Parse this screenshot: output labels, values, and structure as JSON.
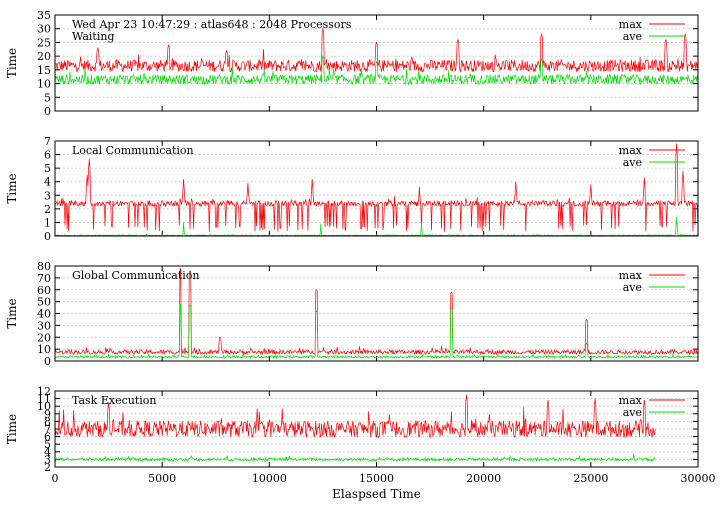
{
  "colors": {
    "max": "#ff0000",
    "ave": "#00dd00"
  },
  "chart_data": [
    {
      "type": "line",
      "title": "Wed Apr 23 10:47:29 : atlas648 : 2048 Processors",
      "subtitle": "Waiting",
      "ylabel": "Time",
      "xlabel": "",
      "xlim": [
        0,
        30000
      ],
      "ylim": [
        0,
        35
      ],
      "yticks": [
        "0",
        "5",
        "10",
        "15",
        "20",
        "25",
        "30",
        "35"
      ],
      "grid": true,
      "legend": "top-right",
      "x_end": 30000,
      "series": [
        {
          "name": "max",
          "base": 16.5,
          "noise": 2.2,
          "spikes": [
            [
              2000,
              23
            ],
            [
              5300,
              24
            ],
            [
              8000,
              22
            ],
            [
              12500,
              30
            ],
            [
              15000,
              25
            ],
            [
              18800,
              26
            ],
            [
              22700,
              28
            ],
            [
              28500,
              26
            ],
            [
              29400,
              28
            ]
          ]
        },
        {
          "name": "ave",
          "base": 11.5,
          "noise": 1.8,
          "spikes": [
            [
              12500,
              20
            ],
            [
              15000,
              18
            ],
            [
              22700,
              19
            ]
          ]
        }
      ]
    },
    {
      "type": "line",
      "title": "Local Communication",
      "ylabel": "Time",
      "xlabel": "",
      "xlim": [
        0,
        30000
      ],
      "ylim": [
        0,
        7
      ],
      "yticks": [
        "0",
        "1",
        "2",
        "3",
        "4",
        "5",
        "6",
        "7"
      ],
      "grid": true,
      "legend": "top-right",
      "x_end": 30000,
      "series": [
        {
          "name": "max",
          "base": 2.4,
          "noise": 0.2,
          "spikes": [
            [
              1600,
              5.7
            ],
            [
              1500,
              4.5
            ],
            [
              6000,
              4.2
            ],
            [
              9000,
              3.9
            ],
            [
              12000,
              4.2
            ],
            [
              17000,
              3.6
            ],
            [
              21500,
              4.0
            ],
            [
              25000,
              3.8
            ],
            [
              27500,
              4.3
            ],
            [
              29000,
              6.8
            ],
            [
              29300,
              4.8
            ]
          ]
        },
        {
          "name": "ave",
          "base": 0.05,
          "noise": 0.03,
          "spikes": [
            [
              6000,
              1.0
            ],
            [
              12400,
              0.9
            ],
            [
              17100,
              1.0
            ],
            [
              29000,
              1.4
            ]
          ]
        }
      ]
    },
    {
      "type": "line",
      "title": "Global Communication",
      "ylabel": "Time",
      "xlabel": "",
      "xlim": [
        0,
        30000
      ],
      "ylim": [
        0,
        80
      ],
      "yticks": [
        "0",
        "10",
        "20",
        "30",
        "40",
        "50",
        "60",
        "70",
        "80"
      ],
      "grid": true,
      "legend": "top-right",
      "x_end": 30000,
      "series": [
        {
          "name": "max",
          "base": 7.5,
          "noise": 1.8,
          "spikes": [
            [
              5850,
              78
            ],
            [
              6300,
              76
            ],
            [
              7700,
              20
            ],
            [
              12200,
              60
            ],
            [
              18500,
              58
            ],
            [
              24800,
              35
            ]
          ]
        },
        {
          "name": "ave",
          "base": 3.5,
          "noise": 1.0,
          "spikes": [
            [
              5850,
              48
            ],
            [
              6300,
              47
            ],
            [
              12200,
              42
            ],
            [
              18500,
              44
            ],
            [
              24800,
              15
            ]
          ]
        }
      ]
    },
    {
      "type": "line",
      "title": "Task Execution",
      "ylabel": "Time",
      "xlabel": "Elaspsed Time",
      "xlim": [
        0,
        30000
      ],
      "ylim": [
        2,
        12
      ],
      "yticks": [
        "2",
        "3",
        "4",
        "5",
        "6",
        "7",
        "8",
        "9",
        "10",
        "11",
        "12"
      ],
      "xticks": [
        "0",
        "5000",
        "10000",
        "15000",
        "20000",
        "25000",
        "30000"
      ],
      "grid": true,
      "legend": "top-right",
      "x_end": 28000,
      "series": [
        {
          "name": "max",
          "base": 7.0,
          "noise": 1.1,
          "spikes": [
            [
              2500,
              10.5
            ],
            [
              19200,
              11.5
            ],
            [
              23000,
              10.8
            ],
            [
              25200,
              11.0
            ],
            [
              27500,
              10.8
            ]
          ]
        },
        {
          "name": "ave",
          "base": 3.0,
          "noise": 0.2,
          "spikes": [
            [
              27000,
              3.7
            ]
          ]
        }
      ]
    }
  ]
}
